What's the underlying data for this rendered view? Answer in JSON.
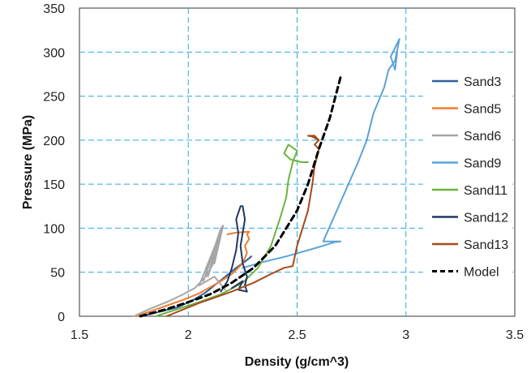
{
  "chart_data": {
    "type": "line",
    "title": "",
    "xlabel": "Density (g/cm^3)",
    "ylabel": "Pressure (MPa)",
    "xlim": [
      1.5,
      3.5
    ],
    "ylim": [
      0,
      350
    ],
    "xticks": [
      1.5,
      2,
      2.5,
      3,
      3.5
    ],
    "yticks": [
      0,
      50,
      100,
      150,
      200,
      250,
      300,
      350
    ],
    "xtick_labels": [
      "1.5",
      "2",
      "2.5",
      "3",
      "3.5"
    ],
    "ytick_labels": [
      "0",
      "50",
      "100",
      "150",
      "200",
      "250",
      "300",
      "350"
    ],
    "grid": true,
    "legend_position": "right",
    "series": [
      {
        "name": "Sand3",
        "color": "#2e5f9e",
        "dash": "solid",
        "x": [
          1.78,
          1.85,
          1.95,
          2.02,
          2.08,
          2.12,
          2.17,
          2.22,
          2.26,
          2.29
        ],
        "y": [
          0,
          4,
          10,
          18,
          27,
          35,
          45,
          55,
          62,
          68
        ]
      },
      {
        "name": "Sand5",
        "color": "#f07c30",
        "dash": "solid",
        "x": [
          1.76,
          1.82,
          1.9,
          1.98,
          2.05,
          2.1,
          2.15,
          2.2,
          2.25,
          2.27,
          2.26,
          2.28,
          2.27,
          2.28,
          2.22,
          2.18
        ],
        "y": [
          0,
          5,
          12,
          19,
          26,
          33,
          40,
          48,
          60,
          72,
          80,
          88,
          93,
          96,
          95,
          93
        ]
      },
      {
        "name": "Sand6",
        "color": "#a6a6a6",
        "dash": "solid",
        "x": [
          1.75,
          1.82,
          1.9,
          1.97,
          2.03,
          2.08,
          2.12,
          2.14,
          2.16,
          2.12,
          2.13,
          2.15,
          2.09,
          2.11,
          2.14,
          2.07,
          2.09,
          2.15,
          2.16,
          2.05,
          2.12,
          2.17
        ],
        "y": [
          0,
          8,
          16,
          24,
          32,
          45,
          62,
          85,
          103,
          60,
          75,
          100,
          45,
          60,
          90,
          40,
          55,
          100,
          103,
          35,
          45,
          30
        ]
      },
      {
        "name": "Sand9",
        "color": "#5ba3d6",
        "dash": "solid",
        "x": [
          2.25,
          2.35,
          2.45,
          2.55,
          2.62,
          2.67,
          2.7,
          2.62,
          2.7,
          2.78,
          2.82,
          2.85,
          2.9,
          2.92,
          2.95,
          2.97,
          2.93,
          2.95,
          2.96
        ],
        "y": [
          55,
          62,
          68,
          75,
          80,
          84,
          85,
          85,
          130,
          175,
          200,
          230,
          260,
          280,
          290,
          315,
          295,
          280,
          300
        ]
      },
      {
        "name": "Sand11",
        "color": "#6cb33e",
        "dash": "solid",
        "x": [
          1.85,
          1.95,
          2.05,
          2.15,
          2.25,
          2.32,
          2.38,
          2.42,
          2.45,
          2.46,
          2.48,
          2.5,
          2.46,
          2.44,
          2.47,
          2.52,
          2.55
        ],
        "y": [
          0,
          8,
          16,
          25,
          38,
          55,
          80,
          110,
          135,
          155,
          175,
          188,
          195,
          185,
          178,
          175,
          175
        ]
      },
      {
        "name": "Sand12",
        "color": "#1f3864",
        "dash": "solid",
        "x": [
          2.15,
          2.18,
          2.2,
          2.22,
          2.23,
          2.22,
          2.24,
          2.25,
          2.26,
          2.25,
          2.24,
          2.25,
          2.27,
          2.26,
          2.27,
          2.23,
          2.25,
          2.2
        ],
        "y": [
          28,
          40,
          55,
          75,
          95,
          110,
          125,
          125,
          110,
          95,
          80,
          60,
          45,
          35,
          28,
          30,
          40,
          32
        ]
      },
      {
        "name": "Sand13",
        "color": "#a54a1a",
        "dash": "solid",
        "x": [
          1.9,
          2.05,
          2.2,
          2.3,
          2.38,
          2.44,
          2.46,
          2.48,
          2.5,
          2.55,
          2.57,
          2.58,
          2.6,
          2.58,
          2.6,
          2.57,
          2.55,
          2.58,
          2.6
        ],
        "y": [
          0,
          15,
          28,
          38,
          48,
          55,
          56,
          57,
          80,
          120,
          150,
          170,
          190,
          195,
          200,
          204,
          205,
          205,
          200
        ]
      },
      {
        "name": "Model",
        "color": "#000000",
        "dash": "dash",
        "x": [
          1.78,
          1.9,
          2.0,
          2.1,
          2.2,
          2.3,
          2.4,
          2.45,
          2.5,
          2.55,
          2.6,
          2.65,
          2.7
        ],
        "y": [
          0,
          8,
          16,
          25,
          38,
          55,
          80,
          100,
          120,
          150,
          190,
          225,
          272
        ]
      }
    ]
  }
}
